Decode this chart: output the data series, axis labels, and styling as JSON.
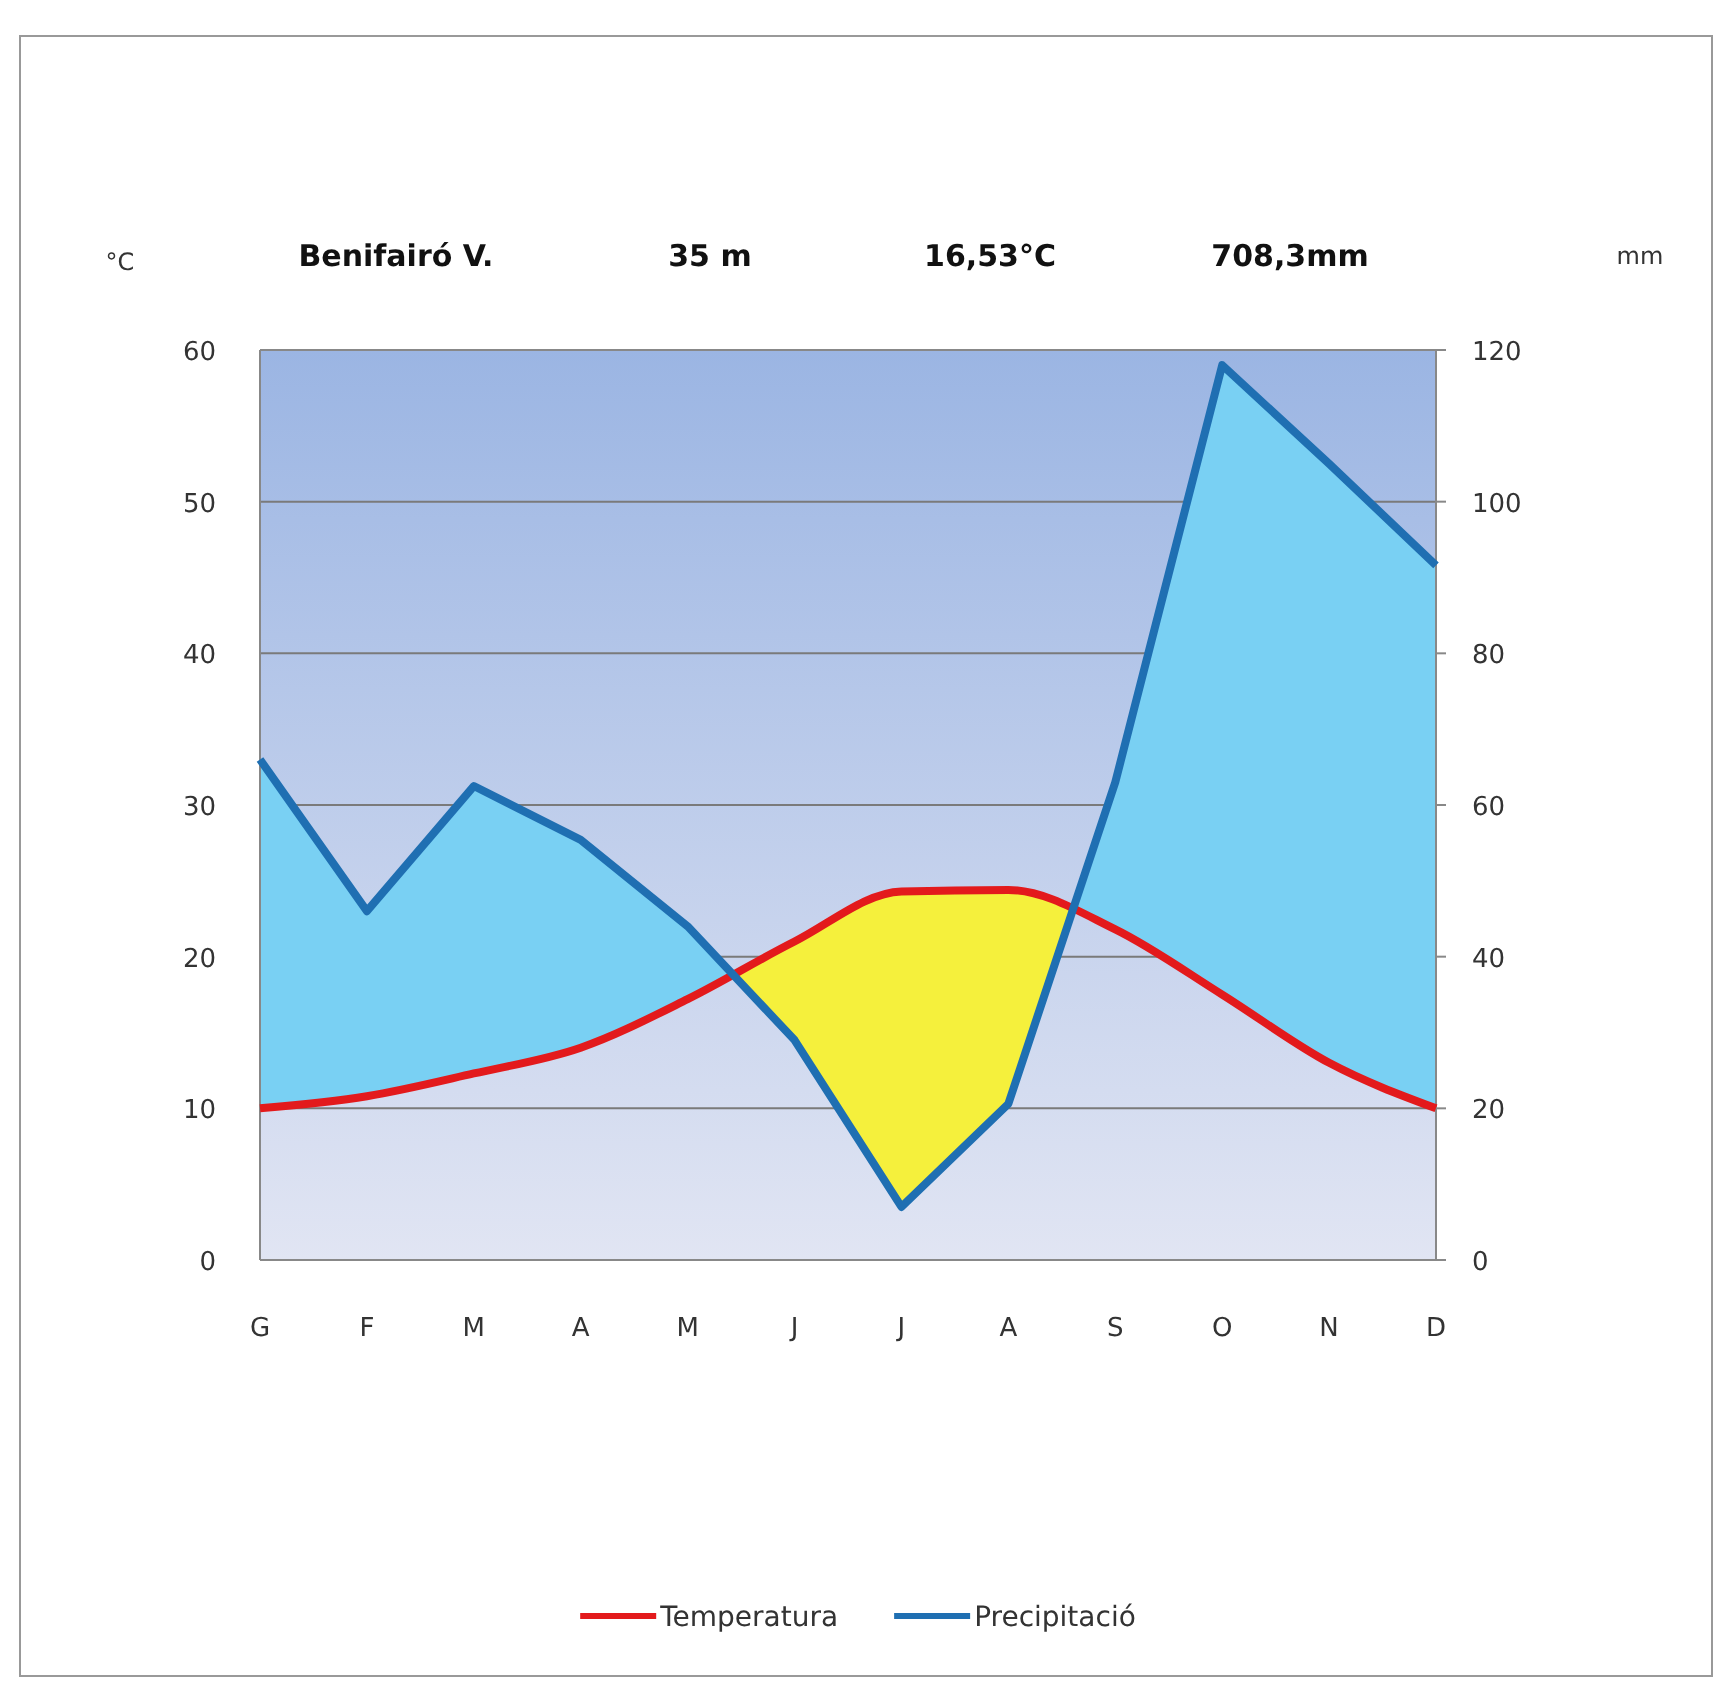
{
  "chart_data": {
    "type": "area",
    "title": "Benifairó V.",
    "annotations": [
      "35 m",
      "16,53°C",
      "708,3mm"
    ],
    "ylabel": "°C",
    "y2label": "mm",
    "categories": [
      "G",
      "F",
      "M",
      "A",
      "M",
      "J",
      "J",
      "A",
      "S",
      "O",
      "N",
      "D"
    ],
    "series": [
      {
        "name": "Temperatura",
        "color": "#e31a1c",
        "values": [
          10,
          10.8,
          12.3,
          14,
          17.2,
          21,
          24.3,
          24.4,
          21.8,
          17.5,
          13,
          10
        ]
      },
      {
        "name": "Precipitació",
        "color": "#1f6fb2",
        "axis": "y2",
        "values": [
          66,
          46,
          62.5,
          55.4,
          44,
          29,
          7,
          20.6,
          63,
          118,
          105,
          91.6
        ]
      }
    ],
    "ylim": [
      0,
      60
    ],
    "yticks": [
      0,
      10,
      20,
      30,
      40,
      50,
      60
    ],
    "y2lim": [
      0,
      120
    ],
    "y2ticks": [
      0,
      20,
      40,
      60,
      80,
      100,
      120
    ],
    "grid": "y",
    "legend": "bottom",
    "marker": "none",
    "line_style": "solid"
  }
}
